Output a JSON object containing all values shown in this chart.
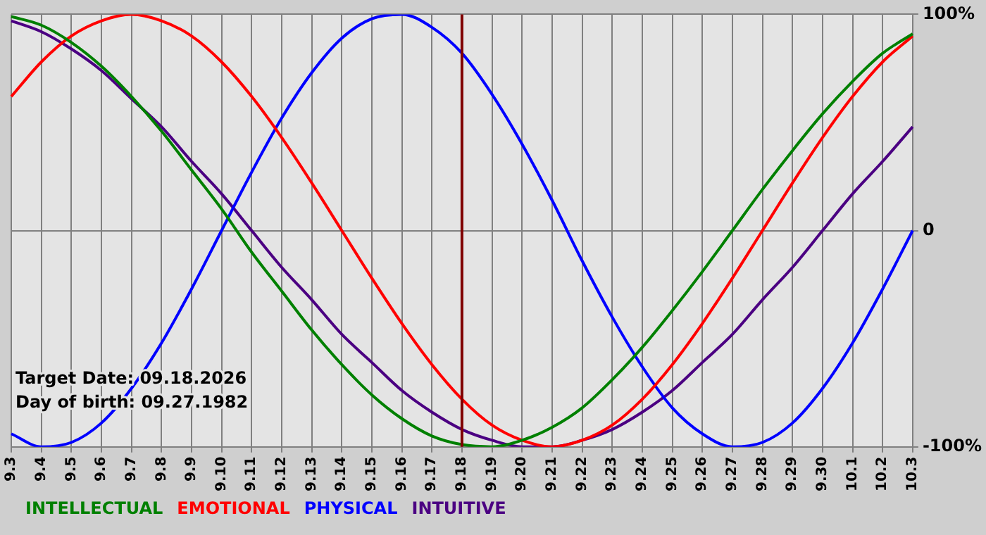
{
  "chart_data": {
    "type": "line",
    "categories": [
      "9.3",
      "9.4",
      "9.5",
      "9.6",
      "9.7",
      "9.8",
      "9.9",
      "9.10",
      "9.11",
      "9.12",
      "9.13",
      "9.14",
      "9.15",
      "9.16",
      "9.17",
      "9.18",
      "9.19",
      "9.20",
      "9.21",
      "9.22",
      "9.23",
      "9.24",
      "9.25",
      "9.26",
      "9.27",
      "9.28",
      "9.29",
      "9.30",
      "10.1",
      "10.2",
      "10.3"
    ],
    "series": [
      {
        "name": "INTELLECTUAL",
        "color": "#008000",
        "values": [
          99,
          95,
          87,
          76,
          62,
          46,
          28,
          10,
          -10,
          -28,
          -46,
          -62,
          -76,
          -87,
          -95,
          -99,
          -100,
          -97,
          -91,
          -82,
          -69,
          -54,
          -37,
          -19,
          0,
          19,
          37,
          54,
          69,
          82,
          91
        ]
      },
      {
        "name": "EMOTIONAL",
        "color": "#ff0000",
        "values": [
          62,
          78,
          90,
          97,
          100,
          97,
          90,
          78,
          62,
          43,
          22,
          0,
          -22,
          -43,
          -62,
          -78,
          -90,
          -97,
          -100,
          -97,
          -90,
          -78,
          -62,
          -43,
          -22,
          0,
          22,
          43,
          62,
          78,
          90
        ]
      },
      {
        "name": "PHYSICAL",
        "color": "#0000ff",
        "values": [
          -94,
          -100,
          -98,
          -89,
          -73,
          -52,
          -27,
          0,
          27,
          52,
          73,
          89,
          98,
          100,
          94,
          82,
          63,
          40,
          14,
          -14,
          -40,
          -63,
          -82,
          -94,
          -100,
          -98,
          -89,
          -73,
          -52,
          -27,
          0
        ]
      },
      {
        "name": "INTUITIVE",
        "color": "#4b0082",
        "values": [
          97,
          92,
          84,
          74,
          61,
          48,
          32,
          17,
          0,
          -17,
          -32,
          -48,
          -61,
          -74,
          -84,
          -92,
          -97,
          -100,
          -100,
          -97,
          -92,
          -84,
          -74,
          -61,
          -48,
          -32,
          -17,
          0,
          17,
          32,
          48
        ]
      }
    ],
    "ylim": [
      -100,
      100
    ],
    "yticks": [
      {
        "value": 100,
        "label": "100%"
      },
      0,
      {
        "value": -100,
        "label": "-100%"
      }
    ],
    "grid": true,
    "legend": "bottom left",
    "marker": "none",
    "line_style": "solid",
    "ref_lines": [
      {
        "axis": "x",
        "value": "9.18",
        "color": "#800000"
      }
    ],
    "annotations": [
      "Target Date: 09.18.2026",
      "Day of birth: 09.27.1982"
    ]
  }
}
